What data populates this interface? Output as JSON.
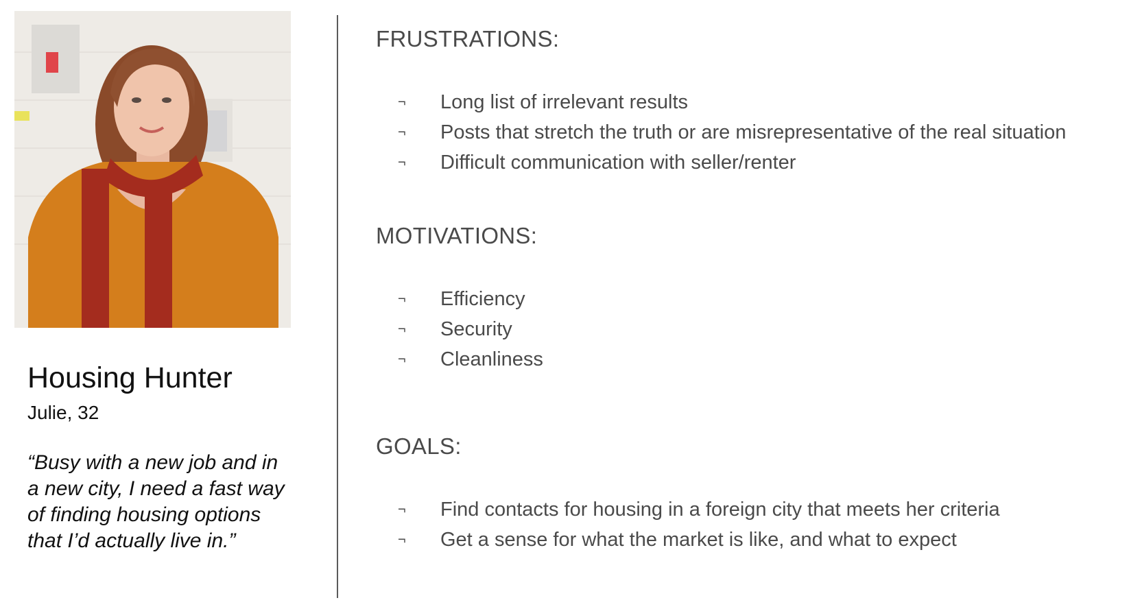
{
  "persona": {
    "title": "Housing Hunter",
    "subtitle": "Julie, 32",
    "quote": "“Busy with a new job and in a new city, I need a fast way of finding housing options that I’d actually live in.”",
    "photo": "portrait-photo"
  },
  "bullet_glyph": "¬",
  "sections": {
    "frustrations": {
      "title": "FRUSTRATIONS:",
      "items": [
        "Long list of irrelevant results",
        "Posts that stretch the truth or are misrepresentative of the real situation",
        "Difficult communication with seller/renter"
      ]
    },
    "motivations": {
      "title": "MOTIVATIONS:",
      "items": [
        "Efficiency",
        "Security",
        "Cleanliness"
      ]
    },
    "goals": {
      "title": "GOALS:",
      "items": [
        "Find contacts for housing in a foreign city that meets her criteria",
        "Get a sense for what the market is like, and what to expect"
      ]
    }
  },
  "colors": {
    "text_heading": "#4a4a4a",
    "text_dark": "#111111",
    "divider": "#5a5a5a"
  }
}
